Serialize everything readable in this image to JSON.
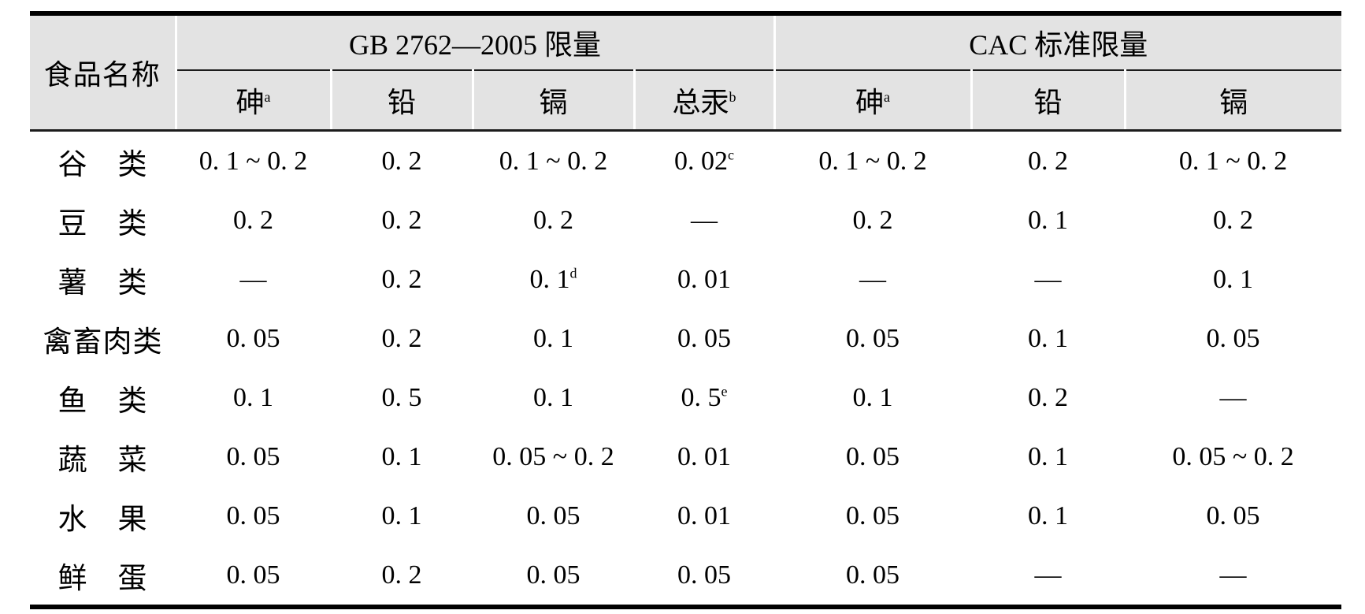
{
  "colors": {
    "header_bg": "#e3e3e3",
    "rule": "#1c1c1c",
    "outer_border": "#000000"
  },
  "table": {
    "col1_header": "食品名称",
    "groups": [
      {
        "label": "GB 2762—2005 限量",
        "columns": [
          {
            "label": "砷",
            "sup": "a"
          },
          {
            "label": "铅",
            "sup": ""
          },
          {
            "label": "镉",
            "sup": ""
          },
          {
            "label": "总汞",
            "sup": "b"
          }
        ]
      },
      {
        "label": "CAC 标准限量",
        "columns": [
          {
            "label": "砷",
            "sup": "a"
          },
          {
            "label": "铅",
            "sup": ""
          },
          {
            "label": "镉",
            "sup": ""
          }
        ]
      }
    ],
    "rows": [
      {
        "name": "谷　类",
        "cells": [
          {
            "v": "0. 1 ~ 0. 2",
            "sup": ""
          },
          {
            "v": "0. 2",
            "sup": ""
          },
          {
            "v": "0. 1 ~ 0. 2",
            "sup": ""
          },
          {
            "v": "0. 02",
            "sup": "c"
          },
          {
            "v": "0. 1 ~ 0. 2",
            "sup": ""
          },
          {
            "v": "0. 2",
            "sup": ""
          },
          {
            "v": "0. 1 ~ 0. 2",
            "sup": ""
          }
        ]
      },
      {
        "name": "豆　类",
        "cells": [
          {
            "v": "0. 2",
            "sup": ""
          },
          {
            "v": "0. 2",
            "sup": ""
          },
          {
            "v": "0. 2",
            "sup": ""
          },
          {
            "v": "—",
            "sup": ""
          },
          {
            "v": "0. 2",
            "sup": ""
          },
          {
            "v": "0. 1",
            "sup": ""
          },
          {
            "v": "0. 2",
            "sup": ""
          }
        ]
      },
      {
        "name": "薯　类",
        "cells": [
          {
            "v": "—",
            "sup": ""
          },
          {
            "v": "0. 2",
            "sup": ""
          },
          {
            "v": "0. 1",
            "sup": "d"
          },
          {
            "v": "0. 01",
            "sup": ""
          },
          {
            "v": "—",
            "sup": ""
          },
          {
            "v": "—",
            "sup": ""
          },
          {
            "v": "0. 1",
            "sup": ""
          }
        ]
      },
      {
        "name": "禽畜肉类",
        "cells": [
          {
            "v": "0. 05",
            "sup": ""
          },
          {
            "v": "0. 2",
            "sup": ""
          },
          {
            "v": "0. 1",
            "sup": ""
          },
          {
            "v": "0. 05",
            "sup": ""
          },
          {
            "v": "0. 05",
            "sup": ""
          },
          {
            "v": "0. 1",
            "sup": ""
          },
          {
            "v": "0. 05",
            "sup": ""
          }
        ]
      },
      {
        "name": "鱼　类",
        "cells": [
          {
            "v": "0. 1",
            "sup": ""
          },
          {
            "v": "0. 5",
            "sup": ""
          },
          {
            "v": "0. 1",
            "sup": ""
          },
          {
            "v": "0. 5",
            "sup": "e"
          },
          {
            "v": "0. 1",
            "sup": ""
          },
          {
            "v": "0. 2",
            "sup": ""
          },
          {
            "v": "—",
            "sup": ""
          }
        ]
      },
      {
        "name": "蔬　菜",
        "cells": [
          {
            "v": "0. 05",
            "sup": ""
          },
          {
            "v": "0. 1",
            "sup": ""
          },
          {
            "v": "0. 05 ~ 0. 2",
            "sup": ""
          },
          {
            "v": "0. 01",
            "sup": ""
          },
          {
            "v": "0. 05",
            "sup": ""
          },
          {
            "v": "0. 1",
            "sup": ""
          },
          {
            "v": "0. 05 ~ 0. 2",
            "sup": ""
          }
        ]
      },
      {
        "name": "水　果",
        "cells": [
          {
            "v": "0. 05",
            "sup": ""
          },
          {
            "v": "0. 1",
            "sup": ""
          },
          {
            "v": "0. 05",
            "sup": ""
          },
          {
            "v": "0. 01",
            "sup": ""
          },
          {
            "v": "0. 05",
            "sup": ""
          },
          {
            "v": "0. 1",
            "sup": ""
          },
          {
            "v": "0. 05",
            "sup": ""
          }
        ]
      },
      {
        "name": "鲜　蛋",
        "cells": [
          {
            "v": "0. 05",
            "sup": ""
          },
          {
            "v": "0. 2",
            "sup": ""
          },
          {
            "v": "0. 05",
            "sup": ""
          },
          {
            "v": "0. 05",
            "sup": ""
          },
          {
            "v": "0. 05",
            "sup": ""
          },
          {
            "v": "—",
            "sup": ""
          },
          {
            "v": "—",
            "sup": ""
          }
        ]
      }
    ]
  }
}
